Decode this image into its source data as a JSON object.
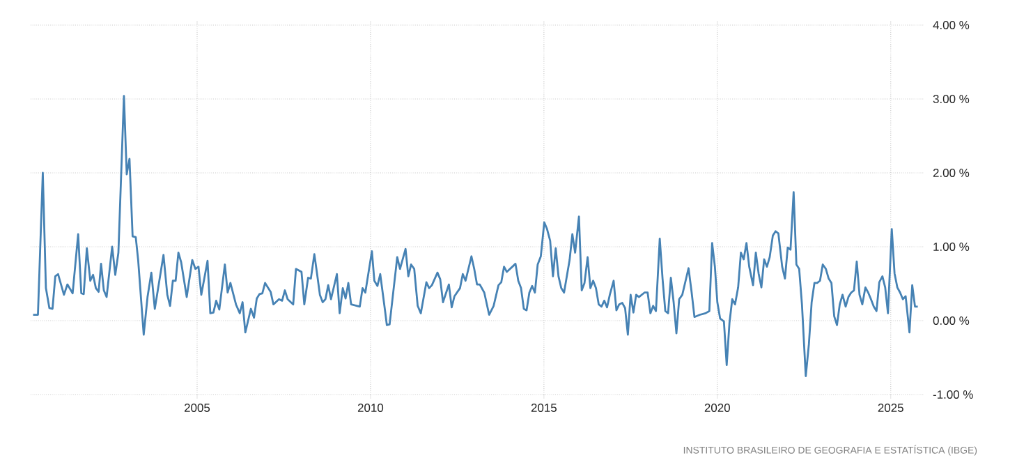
{
  "chart_data": {
    "type": "line",
    "color": "#4682b4",
    "grid": true,
    "x": [
      2000.27,
      2000.41,
      2000.55,
      2000.64,
      2000.74,
      2000.83,
      2000.91,
      2000.99,
      2001.16,
      2001.26,
      2001.41,
      2001.57,
      2001.66,
      2001.73,
      2001.82,
      2001.92,
      2002.0,
      2002.08,
      2002.16,
      2002.23,
      2002.31,
      2002.39,
      2002.55,
      2002.64,
      2002.73,
      2002.89,
      2002.97,
      2003.05,
      2003.14,
      2003.23,
      2003.3,
      2003.46,
      2003.57,
      2003.68,
      2003.78,
      2004.03,
      2004.14,
      2004.22,
      2004.3,
      2004.38,
      2004.46,
      2004.54,
      2004.7,
      2004.86,
      2004.95,
      2005.04,
      2005.12,
      2005.3,
      2005.38,
      2005.47,
      2005.55,
      2005.64,
      2005.8,
      2005.88,
      2005.96,
      2006.12,
      2006.23,
      2006.31,
      2006.39,
      2006.55,
      2006.64,
      2006.72,
      2006.8,
      2006.88,
      2006.96,
      2007.12,
      2007.2,
      2007.36,
      2007.45,
      2007.53,
      2007.61,
      2007.77,
      2007.85,
      2008.01,
      2008.09,
      2008.2,
      2008.28,
      2008.38,
      2008.46,
      2008.54,
      2008.62,
      2008.7,
      2008.78,
      2008.86,
      2009.03,
      2009.11,
      2009.2,
      2009.28,
      2009.36,
      2009.44,
      2009.61,
      2009.69,
      2009.77,
      2009.85,
      2010.04,
      2010.11,
      2010.2,
      2010.28,
      2010.42,
      2010.47,
      2010.55,
      2010.77,
      2010.85,
      2011.01,
      2011.09,
      2011.17,
      2011.26,
      2011.36,
      2011.45,
      2011.61,
      2011.69,
      2011.77,
      2011.93,
      2012.01,
      2012.09,
      2012.26,
      2012.34,
      2012.42,
      2012.58,
      2012.66,
      2012.74,
      2012.91,
      2012.99,
      2013.07,
      2013.15,
      2013.28,
      2013.42,
      2013.55,
      2013.69,
      2013.77,
      2013.85,
      2013.93,
      2014.09,
      2014.18,
      2014.26,
      2014.34,
      2014.42,
      2014.5,
      2014.58,
      2014.66,
      2014.74,
      2014.82,
      2014.91,
      2015.01,
      2015.09,
      2015.18,
      2015.26,
      2015.34,
      2015.42,
      2015.5,
      2015.58,
      2015.74,
      2015.82,
      2015.9,
      2016.01,
      2016.09,
      2016.17,
      2016.26,
      2016.34,
      2016.42,
      2016.5,
      2016.58,
      2016.66,
      2016.74,
      2016.82,
      2016.9,
      2017.01,
      2017.09,
      2017.17,
      2017.26,
      2017.34,
      2017.42,
      2017.5,
      2017.58,
      2017.66,
      2017.74,
      2017.9,
      2017.99,
      2018.07,
      2018.15,
      2018.23,
      2018.34,
      2018.42,
      2018.5,
      2018.58,
      2018.66,
      2018.74,
      2018.82,
      2018.9,
      2018.99,
      2019.17,
      2019.26,
      2019.34,
      2019.5,
      2019.66,
      2019.77,
      2019.85,
      2019.93,
      2020.0,
      2020.08,
      2020.19,
      2020.27,
      2020.35,
      2020.43,
      2020.51,
      2020.6,
      2020.68,
      2020.76,
      2020.84,
      2020.92,
      2021.03,
      2021.11,
      2021.19,
      2021.27,
      2021.35,
      2021.43,
      2021.51,
      2021.6,
      2021.68,
      2021.76,
      2021.87,
      2021.95,
      2022.03,
      2022.11,
      2022.2,
      2022.28,
      2022.36,
      2022.44,
      2022.55,
      2022.64,
      2022.72,
      2022.8,
      2022.88,
      2022.96,
      2023.04,
      2023.13,
      2023.21,
      2023.29,
      2023.37,
      2023.45,
      2023.53,
      2023.61,
      2023.7,
      2023.78,
      2023.86,
      2023.94,
      2024.02,
      2024.1,
      2024.18,
      2024.27,
      2024.35,
      2024.43,
      2024.51,
      2024.59,
      2024.67,
      2024.76,
      2024.84,
      2024.92,
      2025.03,
      2025.11,
      2025.19,
      2025.27,
      2025.35,
      2025.43,
      2025.54,
      2025.62,
      2025.7,
      2025.78
    ],
    "values": [
      0.08,
      0.08,
      2.0,
      0.44,
      0.17,
      0.16,
      0.6,
      0.63,
      0.35,
      0.49,
      0.37,
      1.17,
      0.37,
      0.36,
      0.98,
      0.54,
      0.62,
      0.44,
      0.39,
      0.77,
      0.41,
      0.32,
      1.0,
      0.62,
      0.92,
      3.04,
      1.98,
      2.19,
      1.14,
      1.13,
      0.82,
      -0.19,
      0.32,
      0.65,
      0.16,
      0.89,
      0.35,
      0.2,
      0.54,
      0.54,
      0.92,
      0.79,
      0.32,
      0.82,
      0.7,
      0.73,
      0.35,
      0.81,
      0.1,
      0.11,
      0.27,
      0.15,
      0.76,
      0.38,
      0.51,
      0.22,
      0.1,
      0.25,
      -0.16,
      0.16,
      0.04,
      0.3,
      0.36,
      0.37,
      0.51,
      0.39,
      0.22,
      0.29,
      0.27,
      0.41,
      0.29,
      0.22,
      0.7,
      0.66,
      0.22,
      0.58,
      0.57,
      0.9,
      0.63,
      0.35,
      0.25,
      0.29,
      0.48,
      0.29,
      0.63,
      0.1,
      0.44,
      0.3,
      0.51,
      0.22,
      0.2,
      0.19,
      0.44,
      0.38,
      0.94,
      0.54,
      0.47,
      0.63,
      0.13,
      -0.06,
      -0.05,
      0.86,
      0.7,
      0.97,
      0.6,
      0.76,
      0.7,
      0.2,
      0.1,
      0.52,
      0.44,
      0.48,
      0.65,
      0.56,
      0.25,
      0.49,
      0.18,
      0.33,
      0.44,
      0.63,
      0.54,
      0.87,
      0.7,
      0.49,
      0.49,
      0.38,
      0.08,
      0.2,
      0.48,
      0.52,
      0.73,
      0.66,
      0.73,
      0.77,
      0.54,
      0.44,
      0.16,
      0.14,
      0.38,
      0.47,
      0.38,
      0.76,
      0.87,
      1.33,
      1.24,
      1.08,
      0.6,
      0.98,
      0.6,
      0.44,
      0.38,
      0.82,
      1.17,
      0.92,
      1.41,
      0.41,
      0.51,
      0.86,
      0.44,
      0.54,
      0.44,
      0.22,
      0.19,
      0.27,
      0.18,
      0.35,
      0.54,
      0.14,
      0.22,
      0.24,
      0.17,
      -0.19,
      0.35,
      0.11,
      0.35,
      0.32,
      0.38,
      0.38,
      0.1,
      0.2,
      0.13,
      1.11,
      0.57,
      0.13,
      0.1,
      0.58,
      0.25,
      -0.17,
      0.29,
      0.35,
      0.71,
      0.38,
      0.05,
      0.08,
      0.1,
      0.13,
      1.05,
      0.73,
      0.25,
      0.03,
      -0.01,
      -0.6,
      -0.03,
      0.29,
      0.22,
      0.45,
      0.92,
      0.83,
      1.05,
      0.73,
      0.48,
      0.92,
      0.64,
      0.45,
      0.83,
      0.73,
      0.86,
      1.15,
      1.21,
      1.18,
      0.73,
      0.57,
      0.99,
      0.96,
      1.74,
      0.76,
      0.7,
      0.22,
      -0.75,
      -0.32,
      0.25,
      0.51,
      0.51,
      0.54,
      0.76,
      0.7,
      0.57,
      0.51,
      0.06,
      -0.06,
      0.22,
      0.35,
      0.19,
      0.32,
      0.38,
      0.41,
      0.8,
      0.35,
      0.22,
      0.45,
      0.38,
      0.29,
      0.19,
      0.13,
      0.52,
      0.6,
      0.45,
      0.1,
      1.24,
      0.64,
      0.45,
      0.38,
      0.29,
      0.33,
      -0.16,
      0.48,
      0.19,
      0.19
    ],
    "xlim": [
      2000.2,
      2025.95
    ],
    "ylim": [
      -1,
      4
    ],
    "xticks": [
      2005,
      2010,
      2015,
      2020,
      2025
    ],
    "yticks": [
      {
        "value": -1,
        "label": "-1.00 %"
      },
      {
        "value": 0,
        "label": "0.00 %"
      },
      {
        "value": 1,
        "label": "1.00 %"
      },
      {
        "value": 2,
        "label": "2.00 %"
      },
      {
        "value": 3,
        "label": "3.00 %"
      },
      {
        "value": 4,
        "label": "4.00 %"
      }
    ],
    "annotations": [
      "INSTITUTO BRASILEIRO DE GEOGRAFIA E ESTATÍSTICA (IBGE)"
    ]
  }
}
